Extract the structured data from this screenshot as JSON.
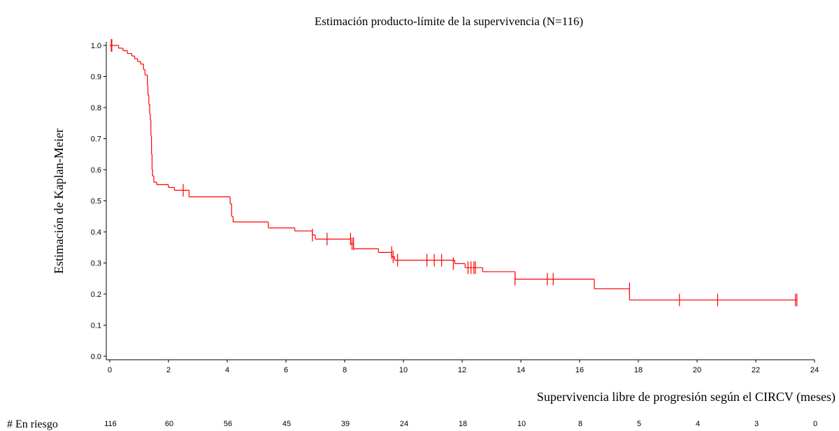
{
  "chart_data": {
    "type": "km-step",
    "title": "Estimación producto-límite de la supervivencia (N=116)",
    "xlabel": "Supervivencia libre de progresión según el CIRCV (meses)",
    "ylabel": "Estimación de Kaplan-Meier",
    "color": "#ff0000",
    "xlim": [
      0,
      24
    ],
    "ylim": [
      0,
      1
    ],
    "xticks": [
      0,
      2,
      4,
      6,
      8,
      10,
      12,
      14,
      16,
      18,
      20,
      22,
      24
    ],
    "yticks": [
      {
        "value": 0,
        "label": "0.0"
      },
      0.1,
      0.2,
      0.3,
      0.4,
      0.5,
      0.6,
      0.7,
      0.8,
      0.9,
      {
        "value": 1,
        "label": "1.0"
      }
    ],
    "x": [
      0,
      0.3,
      0.45,
      0.6,
      0.75,
      0.85,
      0.95,
      1.05,
      1.15,
      1.2,
      1.28,
      1.3,
      1.33,
      1.36,
      1.38,
      1.4,
      1.42,
      1.44,
      1.46,
      1.5,
      1.6,
      2.0,
      2.2,
      2.7,
      4.1,
      4.15,
      4.2,
      5.4,
      6.3,
      6.9,
      7.0,
      8.2,
      8.3,
      9.15,
      9.6,
      9.7,
      11.75,
      12.1,
      12.7,
      13.8,
      16.5,
      17.7,
      23.4
    ],
    "values": [
      1.0,
      0.991,
      0.983,
      0.974,
      0.966,
      0.957,
      0.948,
      0.94,
      0.922,
      0.905,
      0.87,
      0.84,
      0.81,
      0.78,
      0.76,
      0.71,
      0.65,
      0.6,
      0.58,
      0.56,
      0.552,
      0.543,
      0.534,
      0.513,
      0.49,
      0.45,
      0.432,
      0.413,
      0.403,
      0.39,
      0.377,
      0.362,
      0.346,
      0.334,
      0.32,
      0.309,
      0.298,
      0.285,
      0.272,
      0.248,
      0.217,
      0.181,
      0.181
    ],
    "censored_x": [
      0.05,
      0.07,
      2.5,
      6.9,
      7.4,
      8.2,
      8.25,
      8.3,
      9.6,
      9.65,
      9.8,
      10.8,
      11.05,
      11.3,
      11.7,
      12.2,
      12.3,
      12.4,
      12.45,
      13.8,
      14.9,
      15.1,
      17.7,
      19.4,
      20.7,
      23.35,
      23.4
    ],
    "censored_y": [
      1.0,
      1.0,
      0.534,
      0.39,
      0.377,
      0.377,
      0.362,
      0.362,
      0.334,
      0.32,
      0.309,
      0.309,
      0.309,
      0.309,
      0.298,
      0.285,
      0.285,
      0.285,
      0.285,
      0.248,
      0.248,
      0.248,
      0.217,
      0.181,
      0.181,
      0.181,
      0.181
    ],
    "at_risk_label": "# En riesgo",
    "at_risk": [
      116,
      60,
      56,
      45,
      39,
      24,
      18,
      10,
      8,
      5,
      4,
      3,
      0
    ]
  }
}
